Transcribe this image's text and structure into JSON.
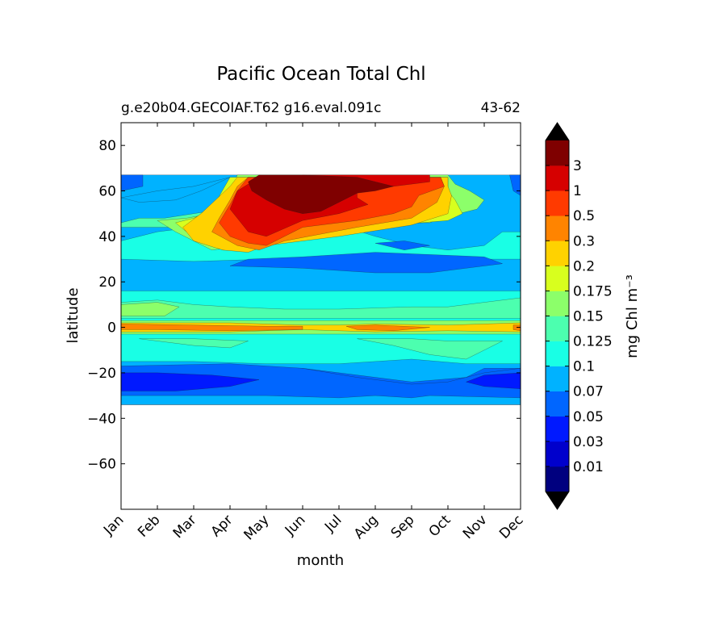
{
  "chart_data": {
    "type": "heatmap",
    "title": "Pacific Ocean Total Chl",
    "subtitle_left": "g.e20b04.GECOIAF.T62 g16.eval.091c",
    "subtitle_right": "43-62",
    "xlabel": "month",
    "ylabel": "latitude",
    "x_ticks": [
      "Jan",
      "Feb",
      "Mar",
      "Apr",
      "May",
      "Jun",
      "Jul",
      "Aug",
      "Sep",
      "Oct",
      "Nov",
      "Dec"
    ],
    "xlim": [
      0,
      11
    ],
    "ylim": [
      -80,
      90
    ],
    "y_ticks": [
      80,
      60,
      40,
      20,
      0,
      -20,
      -40,
      -60
    ],
    "y_tick_labels": [
      "80",
      "60",
      "40",
      "20",
      "0",
      "−20",
      "−40",
      "−60"
    ],
    "data_lat_range": [
      -34,
      67
    ],
    "colorbar": {
      "label": "mg Chl m⁻³",
      "extend": "both",
      "tick_labels": [
        "0.01",
        "0.03",
        "0.05",
        "0.07",
        "0.1",
        "0.125",
        "0.15",
        "0.175",
        "0.2",
        "0.3",
        "0.5",
        "1",
        "3"
      ],
      "colors": [
        "#00007f",
        "#0000cc",
        "#0019ff",
        "#0066ff",
        "#00b2ff",
        "#19ffe5",
        "#4cffaf",
        "#8cff6a",
        "#d8ff1e",
        "#ffd200",
        "#ff8400",
        "#ff3a00",
        "#d60000",
        "#7f0000"
      ],
      "over_color": "#000000",
      "under_color": "#000000"
    },
    "regions": [
      {
        "level": 4,
        "poly": [
          [
            0,
            67
          ],
          [
            11,
            67
          ],
          [
            11,
            -34
          ],
          [
            0,
            -34
          ]
        ]
      },
      {
        "level": 5,
        "poly": [
          [
            0,
            38
          ],
          [
            1,
            42
          ],
          [
            2,
            44
          ],
          [
            2.8,
            45
          ],
          [
            4,
            46
          ],
          [
            6,
            45
          ],
          [
            7,
            40
          ],
          [
            8,
            36
          ],
          [
            9,
            34
          ],
          [
            10,
            36
          ],
          [
            10.5,
            42
          ],
          [
            11,
            42
          ],
          [
            11,
            30
          ],
          [
            8,
            30
          ],
          [
            6,
            28
          ],
          [
            4,
            30
          ],
          [
            2,
            29
          ],
          [
            0,
            30
          ]
        ]
      },
      {
        "level": 5,
        "poly": [
          [
            0,
            16
          ],
          [
            11,
            16
          ],
          [
            11,
            -16
          ],
          [
            9.5,
            -16
          ],
          [
            8,
            -14
          ],
          [
            6,
            -16
          ],
          [
            4,
            -16
          ],
          [
            2,
            -15
          ],
          [
            0,
            -15
          ]
        ]
      },
      {
        "level": 3,
        "poly": [
          [
            0,
            -18
          ],
          [
            1.5,
            -18
          ],
          [
            3,
            -18
          ],
          [
            4,
            -22
          ],
          [
            5.5,
            -24
          ],
          [
            6.5,
            -27
          ],
          [
            7.5,
            -30
          ],
          [
            11,
            -30
          ],
          [
            11,
            -18
          ],
          [
            10,
            -18
          ],
          [
            9.5,
            -22
          ],
          [
            8,
            -24
          ],
          [
            6,
            -20
          ],
          [
            5,
            -18
          ],
          [
            4,
            -20
          ],
          [
            3,
            -18
          ],
          [
            1.5,
            -18
          ],
          [
            0,
            -18
          ]
        ]
      },
      {
        "level": 3,
        "poly": [
          [
            0,
            -17
          ],
          [
            3,
            -16
          ],
          [
            5,
            -18
          ],
          [
            6.5,
            -22
          ],
          [
            8,
            -25
          ],
          [
            9,
            -24
          ],
          [
            10,
            -20
          ],
          [
            11,
            -18
          ],
          [
            11,
            -34
          ],
          [
            0,
            -34
          ]
        ]
      },
      {
        "level": 2,
        "poly": [
          [
            0,
            -20
          ],
          [
            1,
            -20
          ],
          [
            2.5,
            -21
          ],
          [
            3.8,
            -23
          ],
          [
            3,
            -26
          ],
          [
            1.5,
            -28
          ],
          [
            0,
            -28
          ]
        ]
      },
      {
        "level": 2,
        "poly": [
          [
            11,
            -20
          ],
          [
            10,
            -21
          ],
          [
            9.5,
            -24
          ],
          [
            10,
            -26
          ],
          [
            11,
            -27
          ]
        ]
      },
      {
        "level": 3,
        "poly": [
          [
            3,
            27
          ],
          [
            5,
            26
          ],
          [
            7,
            24
          ],
          [
            8.5,
            24
          ],
          [
            9.5,
            26
          ],
          [
            10.5,
            28
          ],
          [
            10,
            31
          ],
          [
            8.5,
            32
          ],
          [
            7,
            33
          ],
          [
            5,
            31
          ],
          [
            3.5,
            30
          ]
        ]
      },
      {
        "level": 3,
        "poly": [
          [
            7,
            37
          ],
          [
            7.8,
            34
          ],
          [
            8.5,
            36
          ],
          [
            7.8,
            38
          ]
        ]
      },
      {
        "level": 4,
        "poly": [
          [
            0,
            -30
          ],
          [
            4,
            -30
          ],
          [
            6,
            -31
          ],
          [
            7,
            -30
          ],
          [
            8,
            -31
          ],
          [
            8.5,
            -30
          ],
          [
            11,
            -31
          ],
          [
            11,
            -34
          ],
          [
            0,
            -34
          ]
        ]
      },
      {
        "level": 6,
        "poly": [
          [
            0,
            11
          ],
          [
            1,
            12
          ],
          [
            2,
            10
          ],
          [
            3,
            9
          ],
          [
            4.5,
            8
          ],
          [
            6,
            8
          ],
          [
            8,
            9
          ],
          [
            9,
            9
          ],
          [
            10,
            11
          ],
          [
            11,
            13
          ],
          [
            11,
            4
          ],
          [
            0,
            4
          ]
        ]
      },
      {
        "level": 7,
        "poly": [
          [
            0,
            10
          ],
          [
            1,
            11
          ],
          [
            1.6,
            9
          ],
          [
            1.2,
            5
          ],
          [
            0,
            5
          ]
        ]
      },
      {
        "level": 6,
        "poly": [
          [
            6.5,
            -5
          ],
          [
            7.5,
            -8
          ],
          [
            8.5,
            -12
          ],
          [
            9.5,
            -14
          ],
          [
            10,
            -10
          ],
          [
            10.5,
            -6
          ],
          [
            9,
            -6
          ],
          [
            8,
            -5
          ]
        ]
      },
      {
        "level": 6,
        "poly": [
          [
            0.5,
            -5
          ],
          [
            2,
            -8
          ],
          [
            3,
            -9
          ],
          [
            3.5,
            -6
          ],
          [
            2,
            -5
          ]
        ]
      },
      {
        "level": 7,
        "poly": [
          [
            0,
            3
          ],
          [
            11,
            3
          ],
          [
            11,
            -3
          ],
          [
            0,
            -3
          ]
        ]
      },
      {
        "level": 9,
        "poly": [
          [
            0,
            2
          ],
          [
            3,
            2
          ],
          [
            5,
            1
          ],
          [
            6,
            1
          ],
          [
            7,
            1.5
          ],
          [
            9,
            1
          ],
          [
            11,
            2
          ],
          [
            11,
            -2
          ],
          [
            9,
            -1.5
          ],
          [
            7,
            -2
          ],
          [
            5,
            -1
          ],
          [
            3,
            -2
          ],
          [
            0,
            -2
          ]
        ]
      },
      {
        "level": 10,
        "poly": [
          [
            0,
            1.5
          ],
          [
            2,
            1
          ],
          [
            4,
            0.5
          ],
          [
            5,
            0.5
          ],
          [
            5,
            -1
          ],
          [
            3,
            -1.5
          ],
          [
            1,
            -1
          ],
          [
            0,
            -1
          ]
        ]
      },
      {
        "level": 10,
        "poly": [
          [
            6.2,
            0.5
          ],
          [
            7,
            1
          ],
          [
            8.5,
            0
          ],
          [
            7.5,
            -1.5
          ],
          [
            6.5,
            -1
          ]
        ]
      },
      {
        "level": 10,
        "poly": [
          [
            10.8,
            1
          ],
          [
            11,
            1
          ],
          [
            11,
            -1.5
          ],
          [
            10.8,
            -1
          ]
        ]
      },
      {
        "level": 3,
        "poly": [
          [
            0,
            67
          ],
          [
            0.6,
            67
          ],
          [
            0.6,
            62
          ],
          [
            0,
            60
          ]
        ]
      },
      {
        "level": 3,
        "poly": [
          [
            10.7,
            67
          ],
          [
            11,
            67
          ],
          [
            11,
            58
          ],
          [
            10.8,
            60
          ]
        ]
      },
      {
        "level": 4,
        "poly": [
          [
            0,
            57
          ],
          [
            1,
            60
          ],
          [
            2,
            62
          ],
          [
            3,
            66
          ],
          [
            2.2,
            60
          ],
          [
            1.5,
            56
          ],
          [
            0.5,
            55
          ]
        ]
      },
      {
        "level": 6,
        "poly": [
          [
            0,
            46
          ],
          [
            0.5,
            48
          ],
          [
            1.2,
            48
          ],
          [
            2,
            50
          ],
          [
            2.8,
            52
          ],
          [
            3,
            60
          ],
          [
            3.2,
            67
          ],
          [
            3.5,
            67
          ],
          [
            2.8,
            56
          ],
          [
            2.5,
            50
          ],
          [
            2,
            46
          ],
          [
            1.5,
            44
          ],
          [
            0.8,
            44
          ],
          [
            0,
            44
          ]
        ]
      },
      {
        "level": 7,
        "poly": [
          [
            1,
            47
          ],
          [
            1.8,
            48
          ],
          [
            2.5,
            50
          ],
          [
            2.9,
            56
          ],
          [
            3.2,
            67
          ],
          [
            9,
            67
          ],
          [
            9.2,
            63
          ],
          [
            9.6,
            60
          ],
          [
            10,
            56
          ],
          [
            9.8,
            52
          ],
          [
            9.3,
            50
          ],
          [
            8.8,
            48
          ],
          [
            8.5,
            46
          ],
          [
            7.5,
            46
          ],
          [
            6,
            44
          ],
          [
            4,
            40
          ],
          [
            3.5,
            36
          ],
          [
            2.5,
            34
          ],
          [
            2,
            38
          ],
          [
            1.5,
            42
          ]
        ]
      },
      {
        "level": 8,
        "poly": [
          [
            1.5,
            46
          ],
          [
            2,
            48
          ],
          [
            2.5,
            52
          ],
          [
            3,
            66
          ],
          [
            9,
            66
          ],
          [
            9,
            60
          ],
          [
            9.2,
            56
          ],
          [
            9.4,
            50
          ],
          [
            9,
            47
          ],
          [
            7.5,
            45
          ],
          [
            6,
            42
          ],
          [
            4,
            38
          ],
          [
            3.5,
            34
          ],
          [
            2.8,
            34
          ],
          [
            2.3,
            38
          ],
          [
            1.8,
            42
          ]
        ]
      },
      {
        "level": 9,
        "poly": [
          [
            1.7,
            44
          ],
          [
            2.2,
            50
          ],
          [
            2.6,
            56
          ],
          [
            3,
            62
          ],
          [
            3.2,
            66
          ],
          [
            9,
            66
          ],
          [
            9,
            62
          ],
          [
            9.1,
            58
          ],
          [
            9,
            50
          ],
          [
            8,
            45
          ],
          [
            6,
            40
          ],
          [
            4,
            36
          ],
          [
            3.5,
            33
          ],
          [
            2.8,
            34
          ],
          [
            2,
            38
          ]
        ]
      },
      {
        "level": 10,
        "poly": [
          [
            2.5,
            42
          ],
          [
            2.7,
            48
          ],
          [
            3,
            56
          ],
          [
            3.2,
            62
          ],
          [
            3.5,
            66
          ],
          [
            8.8,
            66
          ],
          [
            8.9,
            62
          ],
          [
            8.7,
            55
          ],
          [
            8,
            48
          ],
          [
            6.5,
            44
          ],
          [
            4.5,
            38
          ],
          [
            3.8,
            34
          ],
          [
            3.2,
            36
          ]
        ]
      },
      {
        "level": 11,
        "poly": [
          [
            2.7,
            46
          ],
          [
            3,
            54
          ],
          [
            3.2,
            60
          ],
          [
            3.5,
            66
          ],
          [
            8.8,
            66
          ],
          [
            8.9,
            62
          ],
          [
            8.2,
            58
          ],
          [
            8,
            53
          ],
          [
            7.5,
            50
          ],
          [
            6.5,
            47
          ],
          [
            5,
            44
          ],
          [
            4.5,
            40
          ],
          [
            4,
            36
          ],
          [
            3.5,
            37
          ],
          [
            3,
            40
          ]
        ]
      },
      {
        "level": 12,
        "poly": [
          [
            3,
            52
          ],
          [
            3.2,
            60
          ],
          [
            3.5,
            63
          ],
          [
            4.5,
            64
          ],
          [
            5,
            67
          ],
          [
            8.5,
            67
          ],
          [
            8.5,
            64
          ],
          [
            7.5,
            62
          ],
          [
            6.5,
            60
          ],
          [
            6.5,
            57
          ],
          [
            6.8,
            54
          ],
          [
            6,
            50
          ],
          [
            5,
            47
          ],
          [
            4,
            40
          ],
          [
            3.5,
            42
          ]
        ]
      },
      {
        "level": 13,
        "poly": [
          [
            3.5,
            64
          ],
          [
            3.6,
            60
          ],
          [
            4,
            56
          ],
          [
            4.5,
            52
          ],
          [
            5,
            50
          ],
          [
            5.5,
            51
          ],
          [
            6,
            55
          ],
          [
            6.5,
            59
          ],
          [
            7,
            60
          ],
          [
            7.5,
            62
          ],
          [
            6.5,
            66
          ],
          [
            5,
            67
          ],
          [
            3.8,
            67
          ]
        ]
      }
    ]
  }
}
